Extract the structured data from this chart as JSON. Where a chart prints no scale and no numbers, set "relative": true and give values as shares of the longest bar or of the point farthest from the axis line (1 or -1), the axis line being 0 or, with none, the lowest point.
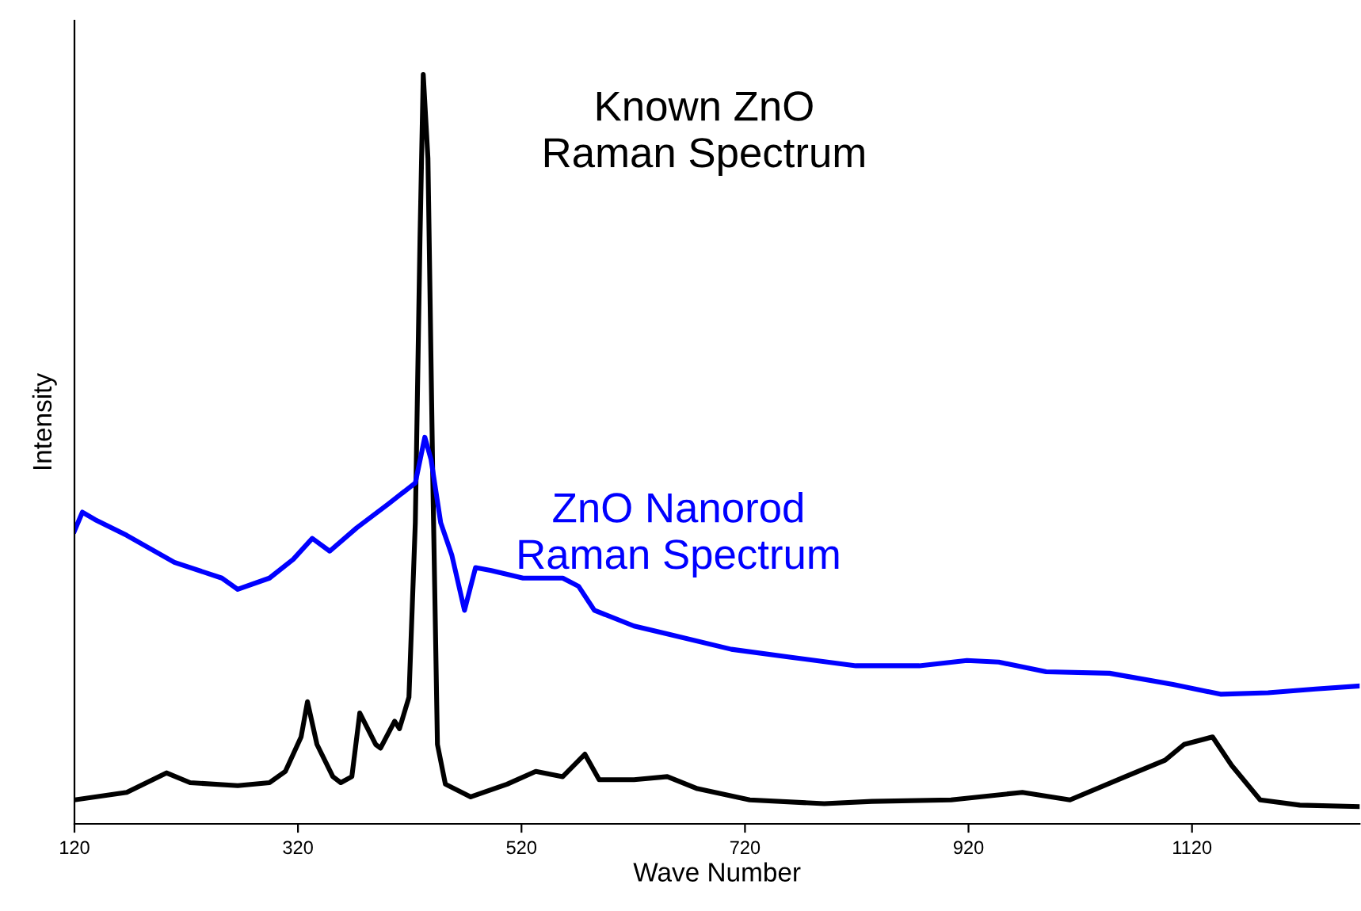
{
  "chart_data": {
    "type": "line",
    "relative": true,
    "xlabel": "Wave Number",
    "ylabel": "Intensity",
    "xlim": [
      120,
      1270
    ],
    "xticks": [
      120,
      320,
      520,
      720,
      920,
      1120
    ],
    "grid": false,
    "legend": false,
    "marker": "none",
    "line_style": "solid",
    "series": [
      {
        "name": "Known ZnO\nRaman Spectrum",
        "color": "#000000",
        "x": [
          120,
          166.8,
          202.3,
          223.5,
          266.1,
          294.5,
          308.7,
          322.8,
          328.5,
          337.0,
          351.2,
          358.3,
          368.2,
          375.3,
          389.5,
          393.8,
          406.5,
          410.8,
          419.3,
          425.0,
          429.2,
          432.1,
          436.3,
          440.6,
          444.8,
          451.9,
          474.6,
          507.2,
          532.8,
          556.9,
          576.7,
          589.5,
          620.7,
          650.5,
          677.4,
          724.3,
          790.9,
          833.5,
          904.4,
          968.2,
          1010.8,
          1060.4,
          1095.9,
          1112.9,
          1138.4,
          1155.5,
          1181.0,
          1216.5,
          1270
        ],
        "values": [
          0.032,
          0.042,
          0.068,
          0.055,
          0.051,
          0.055,
          0.07,
          0.116,
          0.163,
          0.106,
          0.063,
          0.055,
          0.063,
          0.148,
          0.106,
          0.101,
          0.137,
          0.127,
          0.169,
          0.402,
          0.782,
          1,
          0.888,
          0.465,
          0.106,
          0.053,
          0.036,
          0.053,
          0.07,
          0.063,
          0.093,
          0.059,
          0.059,
          0.063,
          0.047,
          0.032,
          0.027,
          0.03,
          0.032,
          0.042,
          0.032,
          0.063,
          0.085,
          0.106,
          0.116,
          0.078,
          0.032,
          0.025,
          0.023
        ]
      },
      {
        "name": "ZnO Nanorod\nRaman Spectrum",
        "color": "#0000ff",
        "x": [
          120,
          127.1,
          138.4,
          166.8,
          209.4,
          251.9,
          266.1,
          294.5,
          315.7,
          332.8,
          348.4,
          372.5,
          400.9,
          425.0,
          433.5,
          439.1,
          447.7,
          457.6,
          469.0,
          478.9,
          493.0,
          521.4,
          556.9,
          571.1,
          585.2,
          620.7,
          649.1,
          707.8,
          762.6,
          819.3,
          876.0,
          918.6,
          947.0,
          989.5,
          1046.2,
          1103.0,
          1145.5,
          1188.1,
          1230.6,
          1270
        ],
        "values": [
          0.391,
          0.416,
          0.406,
          0.385,
          0.349,
          0.328,
          0.313,
          0.328,
          0.353,
          0.381,
          0.364,
          0.395,
          0.427,
          0.455,
          0.516,
          0.486,
          0.402,
          0.359,
          0.285,
          0.342,
          0.338,
          0.328,
          0.328,
          0.317,
          0.285,
          0.264,
          0.254,
          0.233,
          0.222,
          0.211,
          0.211,
          0.218,
          0.216,
          0.203,
          0.201,
          0.186,
          0.173,
          0.175,
          0.18,
          0.184
        ]
      }
    ]
  }
}
